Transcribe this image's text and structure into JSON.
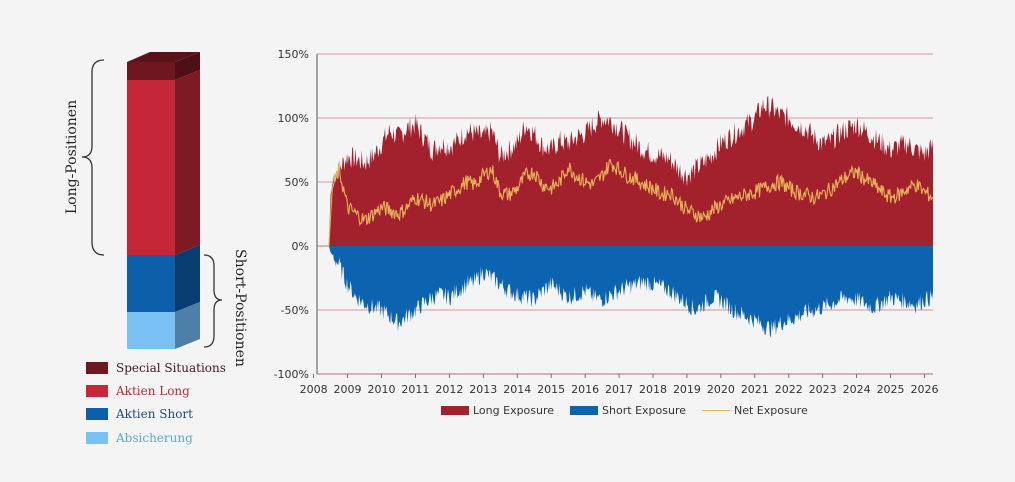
{
  "left_figure": {
    "brace_labels": {
      "long": "Long-Positionen",
      "short": "Short-Positionen"
    },
    "legend": [
      {
        "label": "Special Situations",
        "color": "#6e1720"
      },
      {
        "label": "Aktien Long",
        "color": "#c42838"
      },
      {
        "label": "Aktien Short",
        "color": "#0c5fa8"
      },
      {
        "label": "Absicherung",
        "color": "#78c1f2"
      }
    ]
  },
  "chart_data": {
    "type": "area",
    "y_ticks": [
      "150%",
      "100%",
      "50%",
      "0%",
      "-50%",
      "-100%"
    ],
    "ylim": [
      -100,
      150
    ],
    "x_ticks": [
      "2008",
      "2009",
      "2010",
      "2011",
      "2012",
      "2013",
      "2014",
      "2015",
      "2016",
      "2017",
      "2018",
      "2019",
      "2020",
      "2021",
      "2022",
      "2023",
      "2024",
      "2025",
      "2026"
    ],
    "xlim": [
      2008.1,
      2026.25
    ],
    "grid": "horizontal",
    "legend_placement": "bottom",
    "series": [
      {
        "name": "Long Exposure",
        "color": "#a3202d",
        "x": [
          2008.45,
          2008.5,
          2008.6,
          2008.75,
          2009.0,
          2009.25,
          2009.5,
          2009.75,
          2010.0,
          2010.25,
          2010.5,
          2010.75,
          2011.0,
          2011.25,
          2011.5,
          2011.75,
          2012.0,
          2012.25,
          2012.5,
          2012.75,
          2013.0,
          2013.25,
          2013.5,
          2013.75,
          2014.0,
          2014.25,
          2014.5,
          2014.75,
          2015.0,
          2015.25,
          2015.5,
          2015.75,
          2016.0,
          2016.25,
          2016.5,
          2016.75,
          2017.0,
          2017.25,
          2017.5,
          2017.75,
          2018.0,
          2018.25,
          2018.5,
          2018.75,
          2019.0,
          2019.25,
          2019.5,
          2019.75,
          2020.0,
          2020.25,
          2020.5,
          2020.75,
          2021.0,
          2021.25,
          2021.5,
          2021.75,
          2022.0,
          2022.25,
          2022.5,
          2022.75,
          2023.0,
          2023.25,
          2023.5,
          2023.75,
          2024.0,
          2024.25,
          2024.5,
          2024.75,
          2025.0,
          2025.25,
          2025.5,
          2025.75,
          2026.0,
          2026.25
        ],
        "values": [
          0,
          40,
          55,
          60,
          70,
          68,
          65,
          70,
          80,
          90,
          85,
          92,
          95,
          85,
          75,
          80,
          78,
          82,
          90,
          88,
          85,
          90,
          70,
          75,
          80,
          95,
          88,
          78,
          75,
          82,
          80,
          85,
          88,
          95,
          100,
          98,
          92,
          85,
          80,
          75,
          72,
          70,
          68,
          60,
          55,
          60,
          65,
          72,
          80,
          85,
          90,
          95,
          100,
          110,
          108,
          102,
          100,
          95,
          92,
          85,
          80,
          82,
          88,
          92,
          95,
          90,
          85,
          80,
          75,
          78,
          80,
          75,
          72,
          78
        ],
        "jitter": 9
      },
      {
        "name": "Short Exposure",
        "color": "#0c63b0",
        "x": [
          2008.45,
          2008.5,
          2008.75,
          2009.0,
          2009.25,
          2009.5,
          2009.75,
          2010.0,
          2010.25,
          2010.5,
          2010.75,
          2011.0,
          2011.25,
          2011.5,
          2011.75,
          2012.0,
          2012.25,
          2012.5,
          2012.75,
          2013.0,
          2013.25,
          2013.5,
          2013.75,
          2014.0,
          2014.25,
          2014.5,
          2014.75,
          2015.0,
          2015.25,
          2015.5,
          2015.75,
          2016.0,
          2016.25,
          2016.5,
          2016.75,
          2017.0,
          2017.25,
          2017.5,
          2017.75,
          2018.0,
          2018.25,
          2018.5,
          2018.75,
          2019.0,
          2019.25,
          2019.5,
          2019.75,
          2020.0,
          2020.25,
          2020.5,
          2020.75,
          2021.0,
          2021.25,
          2021.5,
          2021.75,
          2022.0,
          2022.25,
          2022.5,
          2022.75,
          2023.0,
          2023.25,
          2023.5,
          2023.75,
          2024.0,
          2024.25,
          2024.5,
          2024.75,
          2025.0,
          2025.25,
          2025.5,
          2025.75,
          2026.0,
          2026.25
        ],
        "values": [
          0,
          -5,
          -15,
          -30,
          -40,
          -45,
          -48,
          -50,
          -55,
          -60,
          -55,
          -50,
          -45,
          -40,
          -38,
          -40,
          -35,
          -30,
          -28,
          -20,
          -25,
          -30,
          -35,
          -38,
          -40,
          -42,
          -35,
          -30,
          -35,
          -40,
          -38,
          -35,
          -40,
          -42,
          -38,
          -35,
          -32,
          -30,
          -28,
          -30,
          -32,
          -35,
          -40,
          -45,
          -50,
          -45,
          -40,
          -42,
          -48,
          -52,
          -55,
          -58,
          -62,
          -65,
          -60,
          -58,
          -55,
          -52,
          -50,
          -48,
          -45,
          -42,
          -40,
          -42,
          -45,
          -48,
          -44,
          -40,
          -42,
          -44,
          -46,
          -42,
          -40
        ],
        "jitter": 7
      },
      {
        "name": "Net Exposure",
        "color": "#e8b25a",
        "x": [
          2008.45,
          2008.55,
          2008.75,
          2009.0,
          2009.25,
          2009.5,
          2009.75,
          2010.0,
          2010.25,
          2010.5,
          2010.75,
          2011.0,
          2011.25,
          2011.5,
          2011.75,
          2012.0,
          2012.25,
          2012.5,
          2012.75,
          2013.0,
          2013.25,
          2013.5,
          2013.75,
          2014.0,
          2014.25,
          2014.5,
          2014.75,
          2015.0,
          2015.25,
          2015.5,
          2015.75,
          2016.0,
          2016.25,
          2016.5,
          2016.75,
          2017.0,
          2017.25,
          2017.5,
          2017.75,
          2018.0,
          2018.25,
          2018.5,
          2018.75,
          2019.0,
          2019.25,
          2019.5,
          2019.75,
          2020.0,
          2020.25,
          2020.5,
          2020.75,
          2021.0,
          2021.25,
          2021.5,
          2021.75,
          2022.0,
          2022.25,
          2022.5,
          2022.75,
          2023.0,
          2023.25,
          2023.5,
          2023.75,
          2024.0,
          2024.25,
          2024.5,
          2024.75,
          2025.0,
          2025.25,
          2025.5,
          2025.75,
          2026.0,
          2026.25
        ],
        "values": [
          0,
          45,
          60,
          30,
          25,
          20,
          25,
          30,
          28,
          25,
          30,
          38,
          35,
          32,
          35,
          40,
          45,
          50,
          48,
          55,
          60,
          42,
          40,
          45,
          55,
          58,
          48,
          45,
          50,
          62,
          55,
          50,
          48,
          55,
          65,
          60,
          55,
          52,
          48,
          45,
          40,
          42,
          35,
          28,
          25,
          22,
          28,
          32,
          35,
          38,
          40,
          42,
          45,
          48,
          50,
          45,
          42,
          40,
          38,
          40,
          45,
          50,
          55,
          58,
          52,
          48,
          42,
          38,
          40,
          45,
          48,
          42,
          38
        ],
        "jitter": 6
      }
    ]
  }
}
